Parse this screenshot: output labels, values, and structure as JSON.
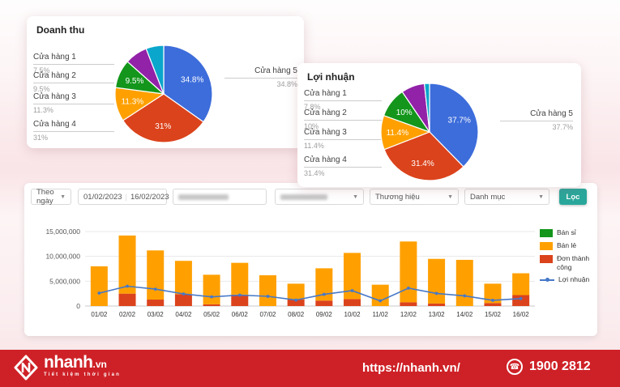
{
  "revenue_card": {
    "title": "Doanh thu"
  },
  "profit_card": {
    "title": "Lợi nhuận"
  },
  "filters": {
    "group_by_value": "Theo ngày",
    "date_from": "01/02/2023",
    "date_to": "16/02/2023",
    "brand_placeholder": "Thương hiệu",
    "category_placeholder": "Danh mục",
    "filter_button_label": "Lọc",
    "filter_button_color": "#2aa79b"
  },
  "chart_data": [
    {
      "type": "pie",
      "title": "Doanh thu",
      "slices": [
        {
          "name": "Cửa hàng 5",
          "value": 34.8,
          "pct": "34.8%",
          "color": "#3d6ddb"
        },
        {
          "name": "Cửa hàng 4",
          "value": 31,
          "pct": "31%",
          "color": "#db431c"
        },
        {
          "name": "Cửa hàng 3",
          "value": 11.3,
          "pct": "11.3%",
          "color": "#ffa000"
        },
        {
          "name": "Cửa hàng 2",
          "value": 9.5,
          "pct": "9.5%",
          "color": "#13961b"
        },
        {
          "name": "Cửa hàng 1",
          "value": 7.5,
          "pct": "7.5%",
          "color": "#9222a8"
        },
        {
          "name": "",
          "value": 5.9,
          "pct": "",
          "color": "#0ba6cb"
        }
      ]
    },
    {
      "type": "pie",
      "title": "Lợi nhuận",
      "slices": [
        {
          "name": "Cửa hàng 5",
          "value": 37.7,
          "pct": "37.7%",
          "color": "#3d6ddb"
        },
        {
          "name": "Cửa hàng 4",
          "value": 31.4,
          "pct": "31.4%",
          "color": "#db431c"
        },
        {
          "name": "Cửa hàng 3",
          "value": 11.4,
          "pct": "11.4%",
          "color": "#ffa000"
        },
        {
          "name": "Cửa hàng 2",
          "value": 10,
          "pct": "10%",
          "color": "#13961b"
        },
        {
          "name": "Cửa hàng 1",
          "value": 7.8,
          "pct": "7.8%",
          "color": "#9222a8"
        },
        {
          "name": "",
          "value": 1.7,
          "pct": "",
          "color": "#0ba6cb"
        }
      ]
    },
    {
      "type": "bar",
      "stacked": true,
      "categories": [
        "01/02",
        "02/02",
        "03/02",
        "04/02",
        "05/02",
        "06/02",
        "07/02",
        "08/02",
        "09/02",
        "10/02",
        "11/02",
        "12/02",
        "13/02",
        "14/02",
        "15/02",
        "16/02"
      ],
      "ylim": [
        0,
        15000000
      ],
      "y_ticks": [
        {
          "v": 0,
          "label": "0"
        },
        {
          "v": 5000000,
          "label": "5,000,000"
        },
        {
          "v": 10000000,
          "label": "10,000,000"
        },
        {
          "v": 15000000,
          "label": "15,000,000"
        }
      ],
      "series": [
        {
          "name": "Bán sỉ",
          "type": "bar",
          "color": "#13961b",
          "values": [
            0,
            0,
            0,
            0,
            0,
            0,
            0,
            0,
            0,
            0,
            0,
            0,
            0,
            0,
            0,
            0
          ]
        },
        {
          "name": "Bán lẻ",
          "type": "bar",
          "color": "#ffa000",
          "values": [
            8000000,
            11700000,
            9900000,
            6700000,
            5950000,
            6400000,
            6200000,
            3200000,
            6500000,
            9300000,
            4300000,
            12250000,
            9000000,
            9300000,
            3900000,
            4400000
          ]
        },
        {
          "name": "Đơn thành công",
          "type": "bar",
          "color": "#db431c",
          "values": [
            0,
            2500000,
            1300000,
            2400000,
            350000,
            2300000,
            0,
            1300000,
            1100000,
            1400000,
            0,
            750000,
            500000,
            0,
            600000,
            2200000
          ]
        },
        {
          "name": "Lợi nhuận",
          "type": "line",
          "color": "#4678c8",
          "values": [
            2600000,
            4000000,
            3400000,
            2450000,
            1850000,
            2200000,
            1950000,
            1200000,
            2350000,
            3100000,
            1050000,
            3600000,
            2550000,
            2050000,
            1150000,
            1500000
          ]
        }
      ]
    }
  ],
  "footer": {
    "logo_main": "nhanh",
    "logo_suffix": ".vn",
    "tagline": "Tiết kiệm thời gian",
    "url": "https://nhanh.vn/",
    "phone": "1900 2812"
  }
}
